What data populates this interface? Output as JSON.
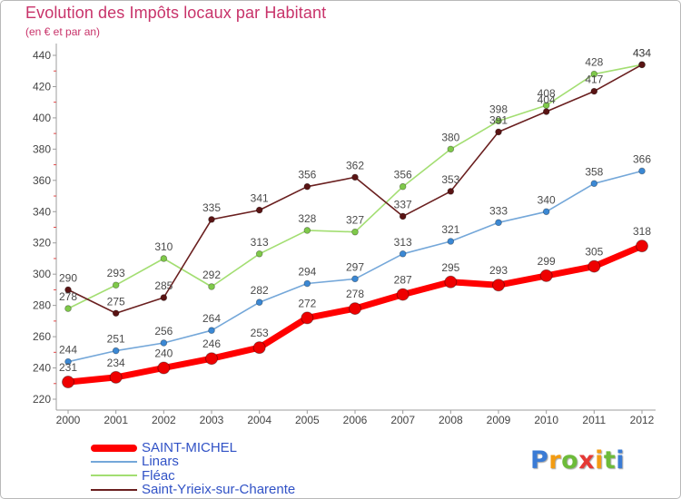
{
  "chart_data": {
    "type": "line",
    "title": "Evolution des Impôts locaux par Habitant",
    "subtitle": "(en € et par an)",
    "title_color": "#c8336a",
    "categories": [
      "2000",
      "2001",
      "2002",
      "2003",
      "2004",
      "2005",
      "2006",
      "2007",
      "2008",
      "2009",
      "2010",
      "2011",
      "2012"
    ],
    "ylim": [
      220,
      440
    ],
    "yticks": [
      220,
      240,
      260,
      280,
      300,
      320,
      340,
      360,
      380,
      400,
      420,
      440
    ],
    "grid": false,
    "legend": "bottom-left",
    "legend_text_color": "#3152c6",
    "series": [
      {
        "name": "SAINT-MICHEL",
        "color": "#ff0000",
        "marker_color": "#ee0000",
        "values": [
          231,
          234,
          240,
          246,
          253,
          272,
          278,
          287,
          295,
          293,
          299,
          305,
          318
        ]
      },
      {
        "name": "Linars",
        "color": "#74a7d9",
        "marker_color": "#3b88d4",
        "values": [
          244,
          251,
          256,
          264,
          282,
          294,
          297,
          313,
          321,
          333,
          340,
          358,
          366
        ]
      },
      {
        "name": "Fléac",
        "color": "#a3de72",
        "marker_color": "#7fc94a",
        "values": [
          278,
          293,
          310,
          292,
          313,
          328,
          327,
          356,
          380,
          398,
          408,
          428,
          434
        ]
      },
      {
        "name": "Saint-Yrieix-sur-Charente",
        "color": "#6a1f1f",
        "marker_color": "#5a1414",
        "values": [
          290,
          275,
          285,
          335,
          341,
          356,
          362,
          337,
          353,
          391,
          404,
          417,
          434
        ]
      }
    ]
  },
  "logo": {
    "text": "Proxiti",
    "letter_colors": [
      "#3a7bd5",
      "#f39c12",
      "#6dbb3a",
      "#e53935",
      "#f39c12",
      "#6dbb3a",
      "#3a7bd5"
    ]
  }
}
